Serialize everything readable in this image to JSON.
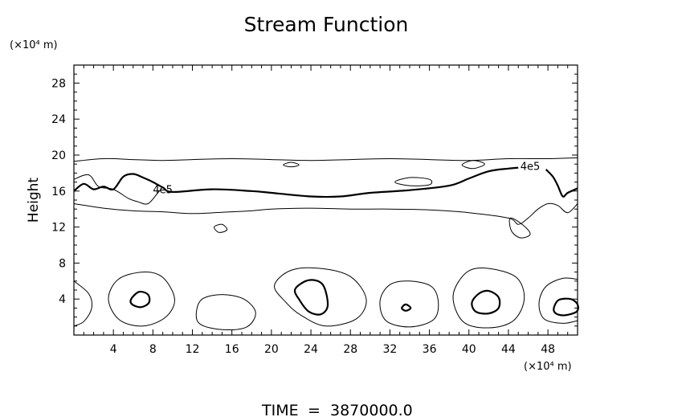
{
  "chart_data": {
    "type": "contour",
    "title": "Stream Function",
    "xlabel": "",
    "ylabel": "Height",
    "x_unit": "(×10⁴ m)",
    "y_unit": "(×10⁴ m)",
    "xlim": [
      0,
      51
    ],
    "ylim": [
      0,
      30
    ],
    "x_ticks": [
      4,
      8,
      12,
      16,
      20,
      24,
      28,
      32,
      36,
      40,
      44,
      48
    ],
    "y_ticks": [
      4,
      8,
      12,
      16,
      20,
      24,
      28
    ],
    "grid": false,
    "contour_labels": [
      {
        "text": "4e5",
        "x": 9.0,
        "y": 16.2
      },
      {
        "text": "4e5",
        "x": 46.2,
        "y": 18.8
      }
    ],
    "contours": [
      {
        "name": "upper-outer-top",
        "weight": "thin",
        "closed": false,
        "points": [
          [
            0,
            19.3
          ],
          [
            3,
            19.6
          ],
          [
            6,
            19.5
          ],
          [
            9,
            19.4
          ],
          [
            12,
            19.5
          ],
          [
            16,
            19.6
          ],
          [
            20,
            19.5
          ],
          [
            24,
            19.4
          ],
          [
            28,
            19.5
          ],
          [
            32,
            19.6
          ],
          [
            36,
            19.5
          ],
          [
            40,
            19.4
          ],
          [
            44,
            19.6
          ],
          [
            48,
            19.6
          ],
          [
            51,
            19.7
          ]
        ]
      },
      {
        "name": "upper-outer-bottom",
        "weight": "thin",
        "closed": false,
        "points": [
          [
            0,
            14.6
          ],
          [
            3,
            14.1
          ],
          [
            6,
            13.8
          ],
          [
            9,
            13.7
          ],
          [
            12,
            13.5
          ],
          [
            16,
            13.7
          ],
          [
            18,
            13.8
          ],
          [
            20,
            14.0
          ],
          [
            24,
            14.1
          ],
          [
            28,
            14.0
          ],
          [
            32,
            14.0
          ],
          [
            36,
            13.9
          ],
          [
            40,
            13.6
          ],
          [
            44,
            13.0
          ],
          [
            45,
            12.3
          ],
          [
            46,
            13.0
          ],
          [
            47,
            14.0
          ],
          [
            48,
            14.6
          ],
          [
            49,
            14.4
          ],
          [
            50,
            13.6
          ],
          [
            51,
            14.6
          ]
        ]
      },
      {
        "name": "upper-4e5-left",
        "weight": "thick",
        "closed": false,
        "points": [
          [
            0,
            16.0
          ],
          [
            1,
            16.8
          ],
          [
            2,
            16.2
          ],
          [
            3,
            16.5
          ],
          [
            4,
            16.2
          ],
          [
            5,
            17.6
          ],
          [
            6,
            17.9
          ],
          [
            7,
            17.5
          ],
          [
            8,
            17.0
          ],
          [
            9,
            16.4
          ],
          [
            10,
            15.9
          ],
          [
            14,
            16.2
          ],
          [
            18,
            16.0
          ],
          [
            20,
            15.8
          ],
          [
            24,
            15.4
          ],
          [
            27,
            15.4
          ],
          [
            30,
            15.8
          ],
          [
            34,
            16.1
          ],
          [
            38,
            16.6
          ],
          [
            40,
            17.4
          ],
          [
            42,
            18.2
          ],
          [
            44,
            18.5
          ],
          [
            45,
            18.6
          ]
        ]
      },
      {
        "name": "upper-4e5-right",
        "weight": "thick",
        "closed": false,
        "points": [
          [
            47.8,
            18.4
          ],
          [
            48.5,
            17.6
          ],
          [
            49,
            16.6
          ],
          [
            49.5,
            15.4
          ],
          [
            50,
            15.8
          ],
          [
            51,
            16.3
          ]
        ]
      },
      {
        "name": "upper-left-blob",
        "weight": "thin",
        "closed": false,
        "points": [
          [
            0,
            17.3
          ],
          [
            1.5,
            17.8
          ],
          [
            2.5,
            16.5
          ],
          [
            4,
            16.2
          ],
          [
            5.5,
            15.2
          ],
          [
            6.5,
            14.8
          ],
          [
            7.5,
            14.6
          ],
          [
            8.5,
            15.8
          ],
          [
            9,
            16.5
          ]
        ]
      },
      {
        "name": "upper-small-1",
        "weight": "thin",
        "closed": true,
        "points": [
          [
            21.2,
            18.9
          ],
          [
            22,
            19.2
          ],
          [
            22.8,
            18.9
          ],
          [
            22,
            18.7
          ]
        ]
      },
      {
        "name": "upper-small-2",
        "weight": "thin",
        "closed": true,
        "points": [
          [
            32.5,
            17.0
          ],
          [
            34,
            17.5
          ],
          [
            36,
            17.3
          ],
          [
            36,
            16.7
          ],
          [
            34,
            16.6
          ]
        ]
      },
      {
        "name": "upper-small-3",
        "weight": "thin",
        "closed": true,
        "points": [
          [
            39.3,
            18.9
          ],
          [
            40.4,
            19.4
          ],
          [
            41.6,
            19.0
          ],
          [
            40.4,
            18.5
          ]
        ]
      },
      {
        "name": "upper-small-4",
        "weight": "thin",
        "closed": true,
        "points": [
          [
            14.2,
            12.0
          ],
          [
            15,
            12.3
          ],
          [
            15.5,
            11.7
          ],
          [
            14.7,
            11.4
          ]
        ]
      },
      {
        "name": "upper-small-5",
        "weight": "thin",
        "closed": true,
        "points": [
          [
            44.2,
            13.0
          ],
          [
            45.5,
            12.2
          ],
          [
            46.2,
            11.2
          ],
          [
            45.2,
            10.8
          ],
          [
            44.3,
            11.6
          ]
        ]
      },
      {
        "name": "cell1-outer",
        "weight": "thin",
        "closed": false,
        "points": [
          [
            0,
            6.0
          ],
          [
            1.5,
            4.6
          ],
          [
            1.8,
            3.0
          ],
          [
            1.0,
            1.5
          ],
          [
            0,
            1.0
          ]
        ]
      },
      {
        "name": "cell2-outer",
        "weight": "thin",
        "closed": true,
        "points": [
          [
            3.5,
            4.0
          ],
          [
            4.5,
            6.2
          ],
          [
            7,
            7.0
          ],
          [
            9,
            6.4
          ],
          [
            10.2,
            4.0
          ],
          [
            9.3,
            2.0
          ],
          [
            7,
            1.0
          ],
          [
            4.6,
            1.7
          ]
        ]
      },
      {
        "name": "cell2-inner",
        "weight": "thick",
        "closed": true,
        "points": [
          [
            5.8,
            4.0
          ],
          [
            6.6,
            4.8
          ],
          [
            7.5,
            4.5
          ],
          [
            7.6,
            3.6
          ],
          [
            6.8,
            3.1
          ],
          [
            5.9,
            3.4
          ]
        ]
      },
      {
        "name": "cell3-outer",
        "weight": "thin",
        "closed": true,
        "points": [
          [
            12.4,
            2.5
          ],
          [
            13,
            4.0
          ],
          [
            15,
            4.5
          ],
          [
            17.2,
            4.0
          ],
          [
            18.4,
            2.5
          ],
          [
            17.5,
            0.9
          ],
          [
            15,
            0.6
          ],
          [
            12.8,
            1.2
          ]
        ]
      },
      {
        "name": "cell4-outer",
        "weight": "thin",
        "closed": true,
        "points": [
          [
            20.3,
            5.5
          ],
          [
            22,
            7.2
          ],
          [
            25,
            7.4
          ],
          [
            28,
            6.5
          ],
          [
            29.6,
            4.0
          ],
          [
            28.6,
            1.8
          ],
          [
            25.5,
            1.0
          ],
          [
            23,
            2.2
          ],
          [
            21.5,
            3.6
          ]
        ]
      },
      {
        "name": "cell4-inner",
        "weight": "thick",
        "closed": true,
        "points": [
          [
            22.4,
            5.1
          ],
          [
            23.8,
            6.1
          ],
          [
            25.2,
            5.6
          ],
          [
            25.7,
            3.3
          ],
          [
            25,
            2.3
          ],
          [
            23.8,
            2.6
          ],
          [
            22.9,
            3.8
          ]
        ]
      },
      {
        "name": "cell5-outer",
        "weight": "thin",
        "closed": true,
        "points": [
          [
            31.0,
            3.8
          ],
          [
            32,
            5.6
          ],
          [
            34,
            6.0
          ],
          [
            36.2,
            5.4
          ],
          [
            36.9,
            3.6
          ],
          [
            36.4,
            1.7
          ],
          [
            34,
            0.9
          ],
          [
            31.6,
            1.6
          ]
        ]
      },
      {
        "name": "cell5-inner",
        "weight": "thick",
        "closed": true,
        "points": [
          [
            33.2,
            3.0
          ],
          [
            33.6,
            3.4
          ],
          [
            34.1,
            3.0
          ],
          [
            33.6,
            2.7
          ]
        ]
      },
      {
        "name": "cell6-outer",
        "weight": "thin",
        "closed": true,
        "points": [
          [
            38.4,
            4.4
          ],
          [
            39.8,
            7.0
          ],
          [
            42,
            7.4
          ],
          [
            44.8,
            6.4
          ],
          [
            45.6,
            4.0
          ],
          [
            44.5,
            1.6
          ],
          [
            42,
            0.8
          ],
          [
            39.4,
            1.5
          ]
        ]
      },
      {
        "name": "cell6-inner",
        "weight": "thick",
        "closed": true,
        "points": [
          [
            40.3,
            3.6
          ],
          [
            41.0,
            4.6
          ],
          [
            42,
            4.9
          ],
          [
            43.0,
            4.2
          ],
          [
            43.0,
            3.0
          ],
          [
            42,
            2.4
          ],
          [
            40.7,
            2.6
          ]
        ]
      },
      {
        "name": "cell7-outer",
        "weight": "thin",
        "closed": false,
        "points": [
          [
            51,
            6.2
          ],
          [
            49.5,
            6.3
          ],
          [
            47.8,
            5.4
          ],
          [
            47.1,
            3.6
          ],
          [
            47.6,
            1.8
          ],
          [
            49.5,
            1.3
          ],
          [
            51,
            1.6
          ]
        ]
      },
      {
        "name": "cell7-inner",
        "weight": "thick",
        "closed": true,
        "points": [
          [
            48.6,
            3.0
          ],
          [
            49.1,
            3.9
          ],
          [
            50.3,
            4.0
          ],
          [
            51,
            3.4
          ],
          [
            50.9,
            2.6
          ],
          [
            49.7,
            2.2
          ],
          [
            48.8,
            2.4
          ]
        ]
      }
    ]
  },
  "footer": {
    "time_label": "TIME",
    "equals": "=",
    "time_value": "3870000.0"
  }
}
